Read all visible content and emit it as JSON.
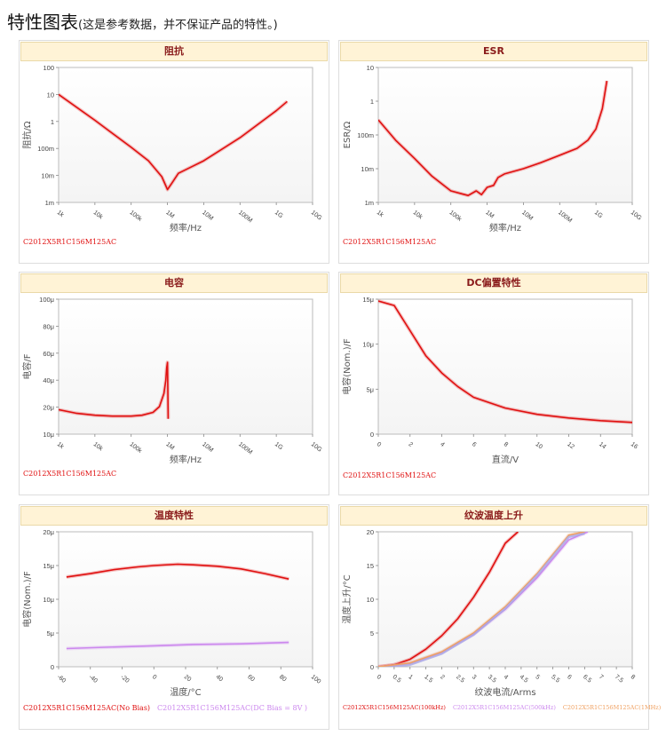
{
  "page": {
    "title": "特性图表",
    "subtitle": "(这是参考数据，并不保证产品的特性。)"
  },
  "colors": {
    "red": "#e01010",
    "pink": "#cc88ee",
    "orange": "#f0a060",
    "lavender": "#a8a8e8",
    "header_bg": "#fff3d6",
    "header_text": "#8a1b1b"
  },
  "chart_data": [
    {
      "id": "impedance",
      "type": "line",
      "title": "阻抗",
      "xlabel": "频率/Hz",
      "ylabel": "阻抗/Ω",
      "x_scale": "log",
      "y_scale": "log",
      "xlim": [
        1000,
        10000000000
      ],
      "ylim": [
        0.001,
        100
      ],
      "xticks": [
        "1k",
        "10k",
        "100k",
        "1M",
        "10M",
        "100M",
        "1G",
        "10G"
      ],
      "yticks": [
        "100",
        "10",
        "1",
        "100m",
        "10m",
        "1m"
      ],
      "series": [
        {
          "name": "C2012X5R1C156M125AC",
          "color": "#e01010",
          "x": [
            1000,
            10000,
            100000,
            300000,
            700000,
            1000000,
            1300000,
            2000000,
            5000000,
            10000000,
            100000000,
            1000000000,
            2000000000
          ],
          "y": [
            10,
            1.1,
            0.11,
            0.035,
            0.009,
            0.003,
            0.005,
            0.012,
            0.022,
            0.035,
            0.25,
            2.5,
            5.5
          ]
        }
      ]
    },
    {
      "id": "esr",
      "type": "line",
      "title": "ESR",
      "xlabel": "频率/Hz",
      "ylabel": "ESR/Ω",
      "x_scale": "log",
      "y_scale": "log",
      "xlim": [
        1000,
        10000000000
      ],
      "ylim": [
        0.001,
        10
      ],
      "xticks": [
        "1k",
        "10k",
        "100k",
        "1M",
        "10M",
        "100M",
        "1G",
        "10G"
      ],
      "yticks": [
        "10",
        "1",
        "100m",
        "10m",
        "1m"
      ],
      "series": [
        {
          "name": "C2012X5R1C156M125AC",
          "color": "#e01010",
          "x": [
            1000,
            3000,
            10000,
            30000,
            100000,
            200000,
            300000,
            500000,
            700000,
            1000000,
            1500000,
            2000000,
            3000000,
            10000000,
            30000000,
            100000000,
            300000000,
            600000000,
            1000000000,
            1500000000,
            2000000000
          ],
          "y": [
            0.28,
            0.07,
            0.02,
            0.006,
            0.0022,
            0.0018,
            0.0016,
            0.0022,
            0.0017,
            0.0028,
            0.0032,
            0.0055,
            0.007,
            0.01,
            0.015,
            0.025,
            0.04,
            0.07,
            0.15,
            0.6,
            4
          ]
        }
      ]
    },
    {
      "id": "capacitance",
      "type": "line",
      "title": "电容",
      "xlabel": "频率/Hz",
      "ylabel": "电容/F",
      "x_scale": "log",
      "y_scale": "log",
      "xlim": [
        1000,
        10000000000
      ],
      "ylim": [
        1e-05,
        0.0001
      ],
      "xticks": [
        "1k",
        "10k",
        "100k",
        "1M",
        "10M",
        "100M",
        "1G",
        "10G"
      ],
      "yticks": [
        "100μ",
        "80μ",
        "60μ",
        "40μ",
        "20μ",
        "10μ"
      ],
      "series": [
        {
          "name": "C2012X5R1C156M125AC",
          "color": "#e01010",
          "x": [
            1000,
            3000,
            10000,
            30000,
            100000,
            200000,
            400000,
            600000,
            800000,
            900000,
            950000,
            1000000,
            1050000
          ],
          "y": [
            1.52e-05,
            1.43e-05,
            1.38e-05,
            1.36e-05,
            1.36e-05,
            1.38e-05,
            1.45e-05,
            1.6e-05,
            2e-05,
            2.5e-05,
            3.1e-05,
            3.4e-05,
            1.3e-05
          ]
        }
      ]
    },
    {
      "id": "dc-bias",
      "type": "line",
      "title": "DC偏置特性",
      "xlabel": "直流/V",
      "ylabel": "电容(Nom.)/F",
      "x_scale": "linear",
      "y_scale": "linear",
      "xlim": [
        0,
        16
      ],
      "ylim": [
        0,
        1.5e-05
      ],
      "xticks": [
        "0",
        "2",
        "4",
        "6",
        "8",
        "10",
        "12",
        "14",
        "16"
      ],
      "yticks": [
        "15μ",
        "10μ",
        "5μ",
        "0"
      ],
      "series": [
        {
          "name": "C2012X5R1C156M125AC",
          "color": "#e01010",
          "x": [
            0,
            1,
            2,
            3,
            4,
            5,
            6,
            8,
            10,
            12,
            14,
            16
          ],
          "y": [
            1.48e-05,
            1.43e-05,
            1.15e-05,
            8.7e-06,
            6.8e-06,
            5.3e-06,
            4.1e-06,
            2.9e-06,
            2.2e-06,
            1.8e-06,
            1.5e-06,
            1.3e-06
          ]
        }
      ]
    },
    {
      "id": "temperature",
      "type": "line",
      "title": "温度特性",
      "xlabel": "温度/°C",
      "ylabel": "电容(Nom.)/F",
      "x_scale": "linear",
      "y_scale": "linear",
      "xlim": [
        -60,
        100
      ],
      "ylim": [
        0,
        2e-05
      ],
      "xticks": [
        "-60",
        "-40",
        "-20",
        "0",
        "20",
        "40",
        "60",
        "80",
        "100"
      ],
      "yticks": [
        "20μ",
        "15μ",
        "10μ",
        "5μ",
        "0"
      ],
      "series": [
        {
          "name": "C2012X5R1C156M125AC(No Bias)",
          "color": "#e01010",
          "x": [
            -55,
            -40,
            -25,
            -10,
            0,
            15,
            25,
            40,
            55,
            70,
            85
          ],
          "y": [
            1.33e-05,
            1.38e-05,
            1.44e-05,
            1.48e-05,
            1.5e-05,
            1.52e-05,
            1.51e-05,
            1.49e-05,
            1.45e-05,
            1.38e-05,
            1.3e-05
          ]
        },
        {
          "name": "C2012X5R1C156M125AC(DC Bias = 8V )",
          "color": "#cc88ee",
          "x": [
            -55,
            -30,
            0,
            25,
            55,
            85
          ],
          "y": [
            2.7e-06,
            2.9e-06,
            3.1e-06,
            3.3e-06,
            3.4e-06,
            3.6e-06
          ]
        }
      ]
    },
    {
      "id": "ripple",
      "type": "line",
      "title": "纹波温度上升",
      "xlabel": "纹波电流/Arms",
      "ylabel": "温度上升/°C",
      "x_scale": "linear",
      "y_scale": "linear",
      "xlim": [
        0,
        8
      ],
      "ylim": [
        0,
        20
      ],
      "xticks": [
        "0",
        "0.5",
        "1",
        "1.5",
        "2",
        "2.5",
        "3",
        "3.5",
        "4",
        "4.5",
        "5",
        "5.5",
        "6",
        "6.5",
        "7",
        "7.5",
        "8"
      ],
      "yticks": [
        "20",
        "15",
        "10",
        "5",
        "0"
      ],
      "series": [
        {
          "name": "C2012X5R1C156M125AC(100kHz)",
          "color": "#e01010",
          "x": [
            0,
            0.5,
            1,
            1.5,
            2,
            2.5,
            3,
            3.5,
            4,
            4.4
          ],
          "y": [
            0,
            0.3,
            1.1,
            2.6,
            4.6,
            7.1,
            10.3,
            14,
            18.3,
            20
          ]
        },
        {
          "name": "C2012X5R1C156M125AC(500kHz)",
          "color": "#cc88ee",
          "x": [
            0,
            1,
            2,
            3,
            4,
            5,
            6,
            6.6
          ],
          "y": [
            0,
            0.5,
            2.1,
            4.8,
            8.5,
            13.2,
            18.8,
            20
          ]
        },
        {
          "name": "C2012X5R1C156M125AC(1MHz)",
          "color": "#f0a060",
          "x": [
            0,
            1,
            2,
            3,
            4,
            5,
            6,
            6.5
          ],
          "y": [
            0,
            0.55,
            2.2,
            5.0,
            8.9,
            13.8,
            19.5,
            20
          ]
        }
      ]
    }
  ]
}
